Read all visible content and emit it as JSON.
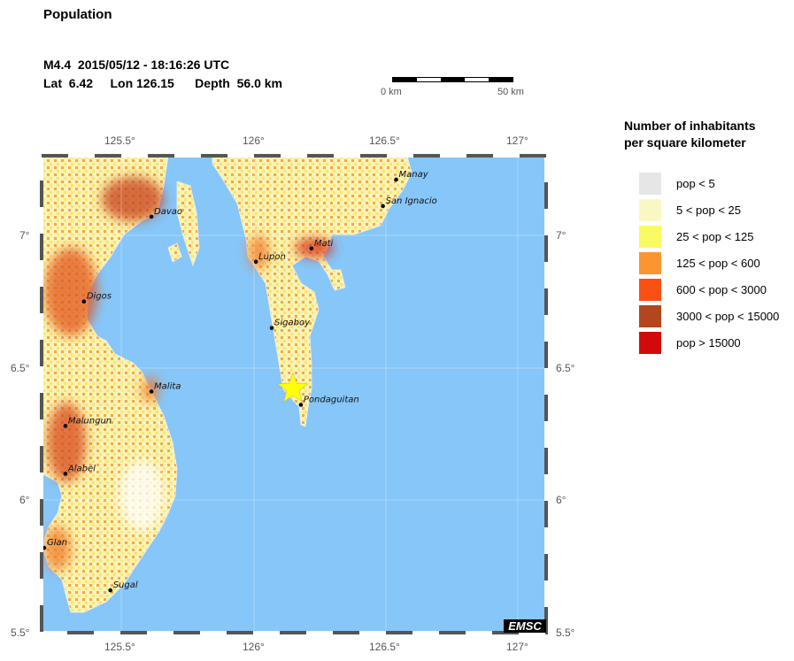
{
  "title": "Population",
  "event": {
    "line1": "M4.4  2015/05/12 - 18:16:26 UTC",
    "line2": "Lat  6.42     Lon 126.15      Depth  56.0 km",
    "lat": 6.42,
    "lon": 126.15
  },
  "scale_bar": {
    "start": "0 km",
    "end": "50 km"
  },
  "axes": {
    "lon_ticks": [
      "125.5°",
      "126°",
      "126.5°",
      "127°"
    ],
    "lat_ticks": [
      "7°",
      "6.5°",
      "6°",
      "5.5°"
    ],
    "lon_range": [
      125.2,
      127.107
    ],
    "lat_range": [
      5.5,
      7.3
    ]
  },
  "legend": {
    "title_line1": "Number of inhabitants",
    "title_line2": "per square kilometer",
    "items": [
      {
        "label": "pop < 5",
        "color": "#e6e6e6"
      },
      {
        "label": "5 < pop < 25",
        "color": "#f9f8c4"
      },
      {
        "label": "25 < pop < 125",
        "color": "#fafa64"
      },
      {
        "label": "125 < pop < 600",
        "color": "#fa9632"
      },
      {
        "label": "600 < pop < 3000",
        "color": "#fa5014"
      },
      {
        "label": "3000 < pop < 15000",
        "color": "#b4461e"
      },
      {
        "label": "pop > 15000",
        "color": "#d20a0a"
      }
    ]
  },
  "cities": [
    {
      "name": "Davao",
      "lon": 125.615,
      "lat": 7.07
    },
    {
      "name": "Manay",
      "lon": 126.54,
      "lat": 7.21
    },
    {
      "name": "San Ignacio",
      "lon": 126.49,
      "lat": 7.11
    },
    {
      "name": "Mati",
      "lon": 126.22,
      "lat": 6.95
    },
    {
      "name": "Lupon",
      "lon": 126.01,
      "lat": 6.9
    },
    {
      "name": "Digos",
      "lon": 125.36,
      "lat": 6.75
    },
    {
      "name": "Sigaboy",
      "lon": 126.07,
      "lat": 6.65
    },
    {
      "name": "Malita",
      "lon": 125.615,
      "lat": 6.41
    },
    {
      "name": "Pondaguitan",
      "lon": 126.18,
      "lat": 6.36
    },
    {
      "name": "Malungun",
      "lon": 125.29,
      "lat": 6.28
    },
    {
      "name": "Alabel",
      "lon": 125.29,
      "lat": 6.1
    },
    {
      "name": "Glan",
      "lon": 125.21,
      "lat": 5.82
    },
    {
      "name": "Sugal",
      "lon": 125.46,
      "lat": 5.66
    }
  ],
  "colors": {
    "sea": "#86c6f8",
    "epicenter": "#ffff00"
  },
  "logo": "EMSC"
}
